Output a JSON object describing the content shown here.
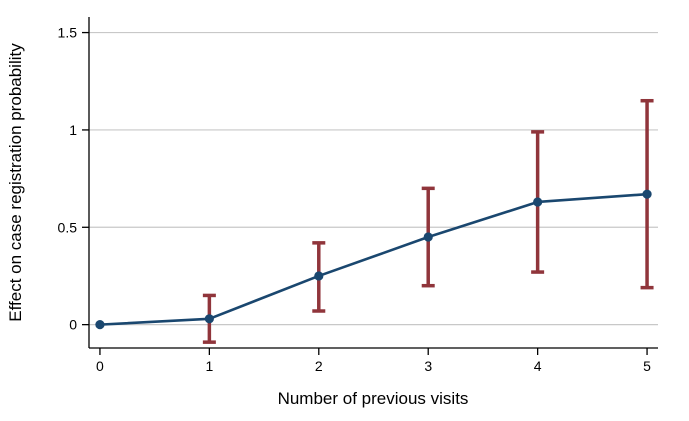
{
  "chart_data": {
    "type": "line",
    "title": "",
    "xlabel": "Number of previous visits",
    "ylabel": "Effect on case registration probability",
    "x": [
      0,
      1,
      2,
      3,
      4,
      5
    ],
    "series": [
      {
        "name": "Effect on case registration probability",
        "values": [
          0,
          0.03,
          0.25,
          0.45,
          0.63,
          0.67
        ],
        "ci_low": [
          null,
          -0.09,
          0.07,
          0.2,
          0.27,
          0.19
        ],
        "ci_high": [
          null,
          0.15,
          0.42,
          0.7,
          0.99,
          1.15
        ]
      }
    ],
    "xtick_labels": [
      "0",
      "1",
      "2",
      "3",
      "4",
      "5"
    ],
    "ytick_values": [
      0,
      0.5,
      1,
      1.5
    ],
    "ytick_labels": [
      "0",
      "0.5",
      "1",
      "1.5"
    ],
    "xlim": [
      -0.1,
      5.1
    ],
    "ylim": [
      -0.12,
      1.58
    ],
    "grid": "horizontal-only",
    "legend": "none",
    "marker": "filled-circle",
    "colors": {
      "line": "#1a476f",
      "marker": "#1a476f",
      "error_bar": "#90353b",
      "gridline": "#c8c8c8",
      "axis": "#000000",
      "background": "#ffffff"
    }
  }
}
